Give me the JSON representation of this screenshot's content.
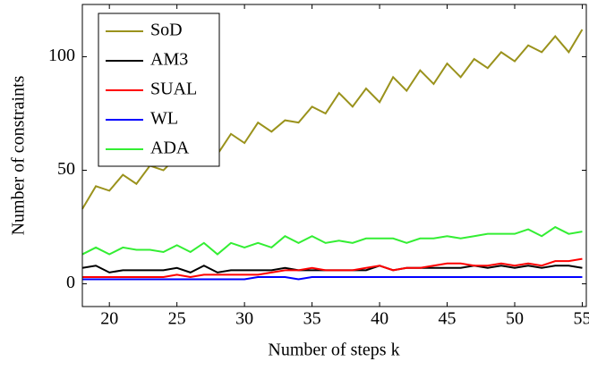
{
  "chart_data": {
    "type": "line",
    "xlabel": "Number of steps k",
    "ylabel": "Number of constraints",
    "x": [
      18,
      19,
      20,
      21,
      22,
      23,
      24,
      25,
      26,
      27,
      28,
      29,
      30,
      31,
      32,
      33,
      34,
      35,
      36,
      37,
      38,
      39,
      40,
      41,
      42,
      43,
      44,
      45,
      46,
      47,
      48,
      49,
      50,
      51,
      52,
      53,
      54,
      55
    ],
    "series": [
      {
        "name": "SoD",
        "color": "#9a921c",
        "values": [
          33,
          43,
          41,
          48,
          44,
          52,
          50,
          56,
          53,
          60,
          57,
          66,
          62,
          71,
          67,
          72,
          71,
          78,
          75,
          84,
          78,
          86,
          80,
          91,
          85,
          94,
          88,
          97,
          91,
          99,
          95,
          102,
          98,
          105,
          102,
          109,
          102,
          112
        ]
      },
      {
        "name": "AM3",
        "color": "#000000",
        "values": [
          7,
          8,
          5,
          6,
          6,
          6,
          6,
          7,
          5,
          8,
          5,
          6,
          6,
          6,
          6,
          7,
          6,
          6,
          6,
          6,
          6,
          6,
          8,
          6,
          7,
          7,
          7,
          7,
          7,
          8,
          7,
          8,
          7,
          8,
          7,
          8,
          8,
          7
        ]
      },
      {
        "name": "SUAL",
        "color": "#ff0000",
        "values": [
          3,
          3,
          3,
          3,
          3,
          3,
          3,
          4,
          3,
          4,
          4,
          4,
          4,
          4,
          5,
          6,
          6,
          7,
          6,
          6,
          6,
          7,
          8,
          6,
          7,
          7,
          8,
          9,
          9,
          8,
          8,
          9,
          8,
          9,
          8,
          10,
          10,
          11
        ]
      },
      {
        "name": "WL",
        "color": "#0000ff",
        "values": [
          2,
          2,
          2,
          2,
          2,
          2,
          2,
          2,
          2,
          2,
          2,
          2,
          2,
          3,
          3,
          3,
          2,
          3,
          3,
          3,
          3,
          3,
          3,
          3,
          3,
          3,
          3,
          3,
          3,
          3,
          3,
          3,
          3,
          3,
          3,
          3,
          3,
          3
        ]
      },
      {
        "name": "ADA",
        "color": "#33ee33",
        "values": [
          13,
          16,
          13,
          16,
          15,
          15,
          14,
          17,
          14,
          18,
          13,
          18,
          16,
          18,
          16,
          21,
          18,
          21,
          18,
          19,
          18,
          20,
          20,
          20,
          18,
          20,
          20,
          21,
          20,
          21,
          22,
          22,
          22,
          24,
          21,
          25,
          22,
          23
        ]
      }
    ],
    "xlim": [
      18,
      55.3
    ],
    "xticks": [
      20,
      25,
      30,
      35,
      40,
      45,
      50,
      55
    ],
    "ylim": [
      -10,
      123
    ],
    "yticks": [
      0,
      50,
      100
    ],
    "legend": "upper left"
  }
}
